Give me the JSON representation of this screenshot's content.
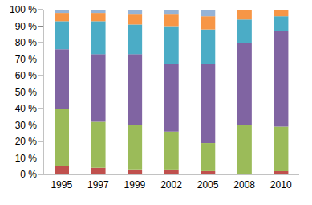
{
  "chart_data": {
    "type": "bar",
    "stacked": true,
    "grid": false,
    "categories": [
      "1995",
      "1997",
      "1999",
      "2002",
      "2005",
      "2008",
      "2010"
    ],
    "series": [
      {
        "color": "#c0504d",
        "values": [
          5,
          4,
          3,
          3,
          2,
          0,
          2
        ]
      },
      {
        "color": "#9bbb59",
        "values": [
          35,
          28,
          27,
          23,
          17,
          30,
          27
        ]
      },
      {
        "color": "#8064a2",
        "values": [
          36,
          41,
          43,
          41,
          48,
          50,
          58
        ]
      },
      {
        "color": "#4bacc6",
        "values": [
          17,
          20,
          18,
          23,
          21,
          14,
          9
        ]
      },
      {
        "color": "#f79646",
        "values": [
          5,
          5,
          6,
          7,
          8,
          6,
          4
        ]
      },
      {
        "color": "#95b3d7",
        "values": [
          2,
          2,
          3,
          3,
          4,
          0,
          0
        ]
      }
    ],
    "ylim": [
      0,
      100
    ],
    "yticks": [
      {
        "value": 0,
        "label": "0 %"
      },
      {
        "value": 10,
        "label": "10 %"
      },
      {
        "value": 20,
        "label": "20 %"
      },
      {
        "value": 30,
        "label": "30 %"
      },
      {
        "value": 40,
        "label": "40 %"
      },
      {
        "value": 50,
        "label": "50 %"
      },
      {
        "value": 60,
        "label": "60 %"
      },
      {
        "value": 70,
        "label": "70 %"
      },
      {
        "value": 80,
        "label": "80 %"
      },
      {
        "value": 90,
        "label": "90 %"
      },
      {
        "value": 100,
        "label": "100 %"
      }
    ]
  }
}
